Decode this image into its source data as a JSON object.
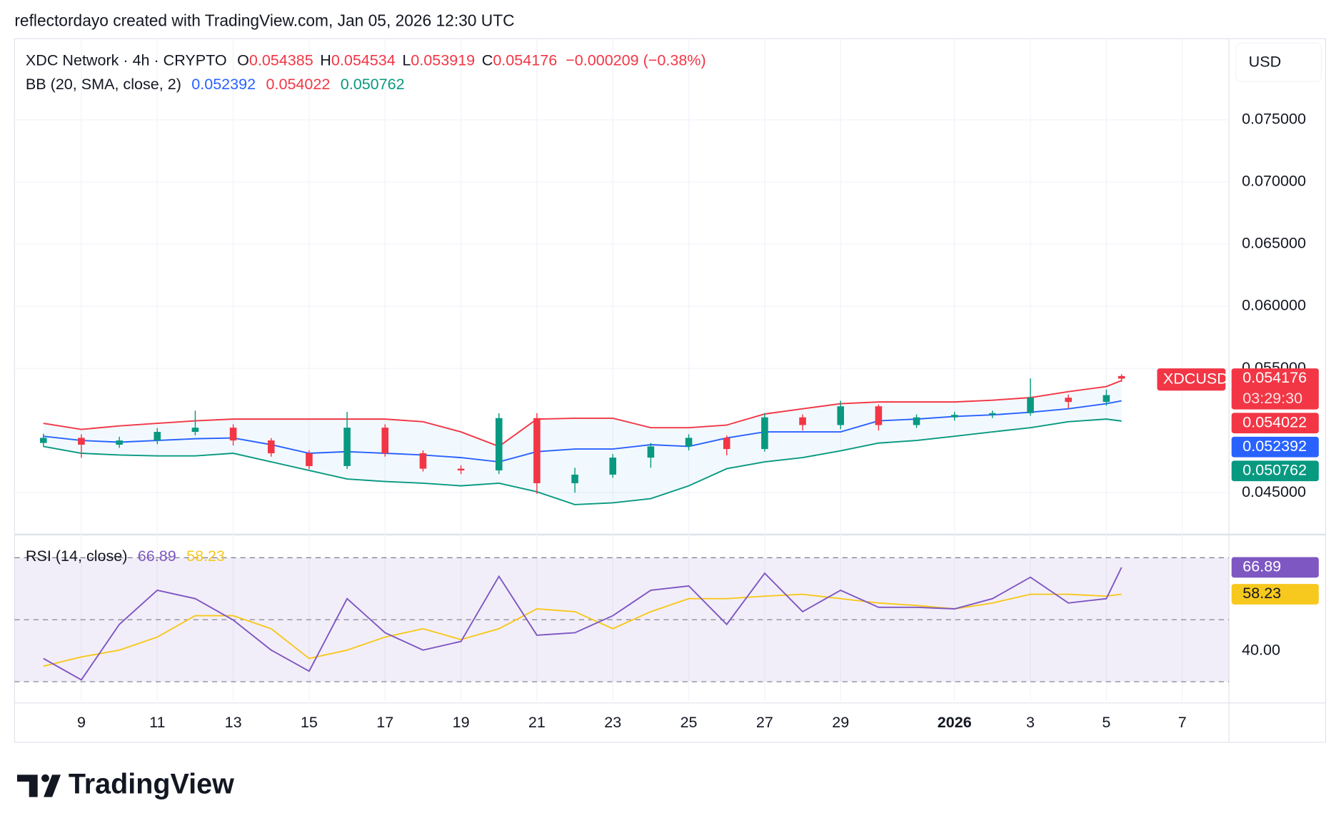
{
  "header": {
    "attribution": "reflectordayo created with TradingView.com, Jan 05, 2026 12:30 UTC"
  },
  "chart_data": [
    {
      "type": "candlestick",
      "title": "XDC Network · 4h · CRYPTO",
      "symbol": "XDCUSD",
      "currency": "USD",
      "countdown": "03:29:30",
      "ohlc_labels": [
        "O",
        "H",
        "L",
        "C"
      ],
      "change": "−0.000209 (−0.38%)",
      "colors": {
        "up": "#089981",
        "down": "#f23645"
      },
      "x": [
        8,
        9,
        10,
        11,
        12,
        13,
        14,
        15,
        16,
        17,
        18,
        19,
        20,
        21,
        22,
        23,
        24,
        25,
        26,
        27,
        28,
        29,
        30,
        31,
        32,
        33,
        34,
        35,
        36,
        36.4
      ],
      "open": [
        0.049,
        0.04941,
        0.04886,
        0.0492,
        0.04989,
        0.05023,
        0.0492,
        0.04817,
        0.04714,
        0.05023,
        0.04817,
        0.04693,
        0.04679,
        0.051,
        0.04576,
        0.04645,
        0.04782,
        0.04872,
        0.04941,
        0.04851,
        0.05106,
        0.05044,
        0.05195,
        0.05044,
        0.05106,
        0.05126,
        0.0514,
        0.05264,
        0.0523,
        0.054385
      ],
      "high": [
        0.04975,
        0.0497,
        0.0495,
        0.0502,
        0.0516,
        0.0505,
        0.0494,
        0.0484,
        0.0515,
        0.0505,
        0.0484,
        0.0472,
        0.0514,
        0.0514,
        0.047,
        0.0481,
        0.049,
        0.0497,
        0.0496,
        0.0514,
        0.0513,
        0.0524,
        0.0521,
        0.0513,
        0.0515,
        0.0516,
        0.0542,
        0.0529,
        0.0533,
        0.054534
      ],
      "low": [
        0.0487,
        0.0478,
        0.0486,
        0.0489,
        0.0496,
        0.0488,
        0.0479,
        0.0469,
        0.0469,
        0.0479,
        0.0467,
        0.0465,
        0.0465,
        0.0449,
        0.045,
        0.0462,
        0.047,
        0.0484,
        0.048,
        0.0483,
        0.05,
        0.0501,
        0.05,
        0.0502,
        0.0508,
        0.051,
        0.0512,
        0.0518,
        0.052,
        0.053919
      ],
      "close": [
        0.04941,
        0.04886,
        0.0492,
        0.04989,
        0.05023,
        0.0492,
        0.04817,
        0.04714,
        0.05023,
        0.04817,
        0.04693,
        0.04679,
        0.051,
        0.04576,
        0.04645,
        0.04782,
        0.04872,
        0.04941,
        0.04851,
        0.05106,
        0.05044,
        0.05195,
        0.05044,
        0.05106,
        0.05126,
        0.0514,
        0.05264,
        0.0523,
        0.05285,
        0.054176
      ],
      "indicator": {
        "name": "BB (20, SMA, close, 2)",
        "fill": "rgba(33,150,243,0.06)",
        "series": [
          {
            "color": "#2962ff",
            "values": [
              0.04954,
              0.0492,
              0.04906,
              0.0492,
              0.04934,
              0.0494,
              0.04886,
              0.04817,
              0.0483,
              0.04817,
              0.04803,
              0.04782,
              0.04748,
              0.0483,
              0.04851,
              0.04851,
              0.04886,
              0.04872,
              0.0494,
              0.04989,
              0.04989,
              0.04989,
              0.05078,
              0.05092,
              0.05113,
              0.05126,
              0.05147,
              0.05175,
              0.05216,
              0.052392
            ]
          },
          {
            "color": "#f23645",
            "values": [
              0.05058,
              0.05009,
              0.05037,
              0.05058,
              0.05078,
              0.05092,
              0.05092,
              0.05092,
              0.05092,
              0.05092,
              0.05071,
              0.04989,
              0.04872,
              0.05092,
              0.05099,
              0.05099,
              0.05023,
              0.05023,
              0.05044,
              0.05133,
              0.05175,
              0.05216,
              0.0523,
              0.0523,
              0.0523,
              0.05244,
              0.05265,
              0.05313,
              0.05354,
              0.054022
            ]
          },
          {
            "color": "#089981",
            "values": [
              0.04872,
              0.04817,
              0.04803,
              0.04796,
              0.04796,
              0.04817,
              0.04748,
              0.04679,
              0.0461,
              0.0459,
              0.04576,
              0.04555,
              0.04576,
              0.04507,
              0.04404,
              0.04418,
              0.04452,
              0.04555,
              0.04693,
              0.04748,
              0.04782,
              0.04837,
              0.04899,
              0.0492,
              0.04954,
              0.04989,
              0.05023,
              0.05071,
              0.05092,
              0.050762
            ]
          }
        ]
      },
      "xlim": [
        7.24,
        39.23
      ],
      "xticks": [
        9,
        11,
        13,
        15,
        17,
        19,
        21,
        23,
        25,
        27,
        29,
        {
          "value": 32,
          "label": "2026"
        },
        {
          "value": 34,
          "label": "3"
        },
        {
          "value": 36,
          "label": "5"
        },
        {
          "value": 38,
          "label": "7"
        }
      ],
      "ylim": [
        0.04163,
        0.08153
      ],
      "yticks": [
        {
          "value": 0.045,
          "label": "0.045000"
        },
        {
          "value": 0.055,
          "label": "0.055000"
        },
        {
          "value": 0.06,
          "label": "0.060000"
        },
        {
          "value": 0.065,
          "label": "0.065000"
        },
        {
          "value": 0.07,
          "label": "0.070000"
        },
        {
          "value": 0.075,
          "label": "0.075000"
        }
      ],
      "grid": true
    },
    {
      "type": "line",
      "title": "RSI (14, close)",
      "band_color": "rgba(126,87,194,0.1)",
      "x": [
        8,
        9,
        10,
        11,
        12,
        13,
        14,
        15,
        16,
        17,
        18,
        19,
        20,
        21,
        22,
        23,
        24,
        25,
        26,
        27,
        28,
        29,
        30,
        31,
        32,
        33,
        34,
        35,
        36,
        36.4
      ],
      "series": [
        {
          "color": "#7e57c2",
          "values": [
            37.5,
            30.6,
            48.5,
            59.5,
            56.8,
            49.9,
            40.2,
            33.4,
            56.8,
            45.8,
            40.2,
            43.0,
            64.0,
            45.0,
            45.8,
            51.3,
            59.5,
            60.9,
            48.5,
            65.0,
            52.6,
            59.5,
            54.0,
            54.0,
            53.5,
            56.8,
            63.7,
            55.4,
            56.8,
            66.89
          ]
        },
        {
          "color": "#f7c81e",
          "values": [
            35.0,
            38.0,
            40.2,
            44.4,
            51.3,
            51.3,
            47.1,
            37.5,
            40.2,
            44.4,
            47.1,
            43.6,
            47.1,
            53.5,
            52.6,
            47.1,
            52.6,
            56.8,
            56.8,
            57.6,
            58.2,
            56.8,
            55.4,
            54.6,
            53.5,
            55.4,
            58.2,
            58.2,
            57.6,
            58.23
          ]
        }
      ],
      "levels": [
        30,
        50,
        70
      ],
      "xlim": [
        7.24,
        39.23
      ],
      "ylim": [
        23.7,
        76.1
      ],
      "yticks": [
        {
          "value": 40,
          "label": "40.00"
        }
      ],
      "grid": true
    }
  ],
  "footer": {
    "logo": "TradingView"
  }
}
